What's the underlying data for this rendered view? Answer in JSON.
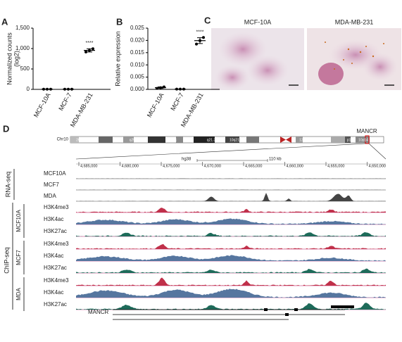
{
  "chart_data": [
    {
      "type": "dot",
      "panel": "A",
      "ylabel": [
        "Normalized counts",
        "(log2)"
      ],
      "categories": [
        "MCF-10A",
        "MCF-7",
        "MDA-MB-231"
      ],
      "values": [
        [
          5,
          5,
          5
        ],
        [
          5,
          5,
          5
        ],
        [
          915,
          955,
          995
        ]
      ],
      "means": [
        5,
        5,
        955
      ],
      "errors": [
        0,
        0,
        40
      ],
      "color": "#000000",
      "annotation": "****",
      "ylim": [
        0,
        1500
      ],
      "yticks": [
        0,
        500,
        {
          "value": 1000,
          "label": "1,000"
        },
        {
          "value": 1500,
          "label": "1,500"
        }
      ]
    },
    {
      "type": "dot",
      "panel": "B",
      "ylabel": [
        "Relative expression"
      ],
      "categories": [
        "MCF-10A",
        "MCF-7",
        "MDA-MB-231"
      ],
      "values": [
        [
          0.0004,
          0.0007,
          0.001
        ],
        [
          0.0001,
          0.0001,
          0.0001
        ],
        [
          0.0185,
          0.0199,
          0.0212
        ]
      ],
      "means": [
        0.0007,
        0.0001,
        0.0199
      ],
      "errors": [
        0.0003,
        0,
        0.0012
      ],
      "color": "#000000",
      "annotation": "****",
      "ylim": [
        0,
        0.025
      ],
      "yticks": [
        {
          "value": 0,
          "label": "0.000"
        },
        {
          "value": 0.005,
          "label": "0.005"
        },
        {
          "value": 0.01,
          "label": "0.010"
        },
        {
          "value": 0.015,
          "label": "0.015"
        },
        {
          "value": 0.02,
          "label": "0.020"
        },
        {
          "value": 0.025,
          "label": "0.025"
        }
      ]
    }
  ],
  "panel_c": {
    "label": "C",
    "images": [
      "MCF-10A",
      "MDA-MB-231"
    ]
  },
  "panel_d": {
    "label": "D",
    "chromosome": "Chr10",
    "bands": [
      "26.3",
      "q25.1",
      "q23.1",
      "q21.3",
      "10q21.1",
      "12.1",
      "p13",
      "10p14"
    ],
    "gene_marker": "MANCR",
    "assembly": "hg38",
    "scale": "110 kb",
    "coordinates": [
      "4,685,000",
      "4,680,000",
      "4,675,000",
      "4,670,000",
      "4,665,000",
      "4,660,000",
      "4,655,000",
      "4,650,000"
    ],
    "rna_seq": {
      "label": "RNA-seq",
      "tracks": [
        "MCF10A",
        "MCF7",
        "MDA"
      ]
    },
    "chip_seq": {
      "label": "ChIP-seq",
      "groups": [
        {
          "name": "MCF10A",
          "tracks": [
            "H3K4me3",
            "H3K4ac",
            "H3K27ac"
          ]
        },
        {
          "name": "MCF7",
          "tracks": [
            "H3K4me3",
            "H3K4ac",
            "H3K27ac"
          ]
        },
        {
          "name": "MDA",
          "tracks": [
            "H3K4me3",
            "H3K4ac",
            "H3K27ac"
          ]
        }
      ]
    },
    "gene": "MANCR"
  }
}
